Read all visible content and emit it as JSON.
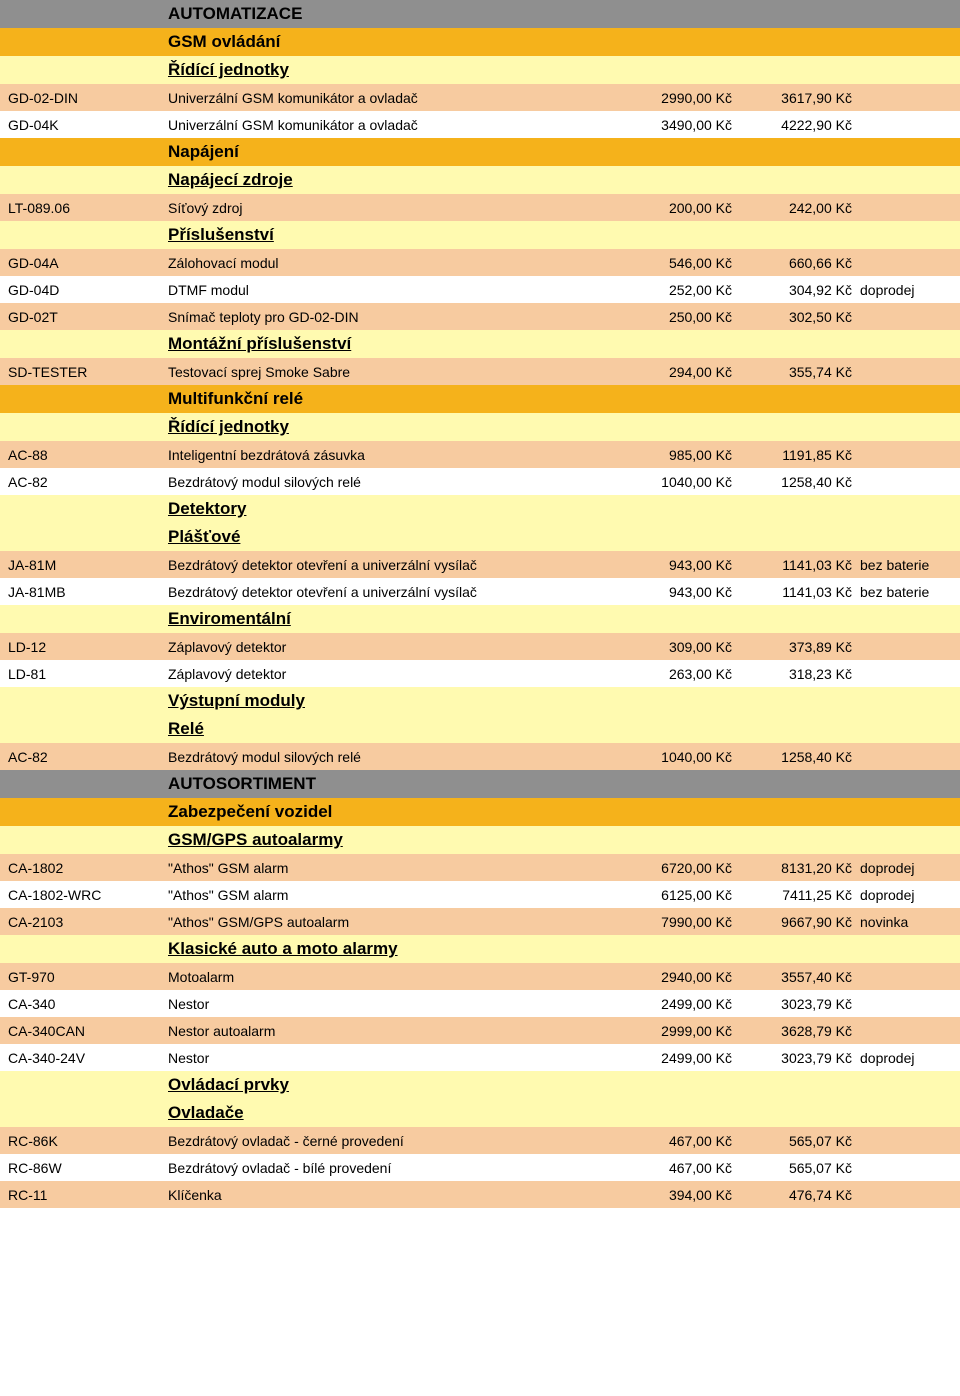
{
  "rows": [
    {
      "type": "section",
      "bg": "bg-grey",
      "label": "AUTOMATIZACE"
    },
    {
      "type": "group",
      "bg": "bg-orange",
      "label": "GSM ovládání"
    },
    {
      "type": "sub",
      "bg": "bg-lyellow",
      "label": "Řídící jednotky"
    },
    {
      "type": "item",
      "bg": "bg-peach",
      "code": "GD-02-DIN",
      "desc": "Univerzální GSM komunikátor a ovladač",
      "p1": "2990,00 Kč",
      "p2": "3617,90 Kč",
      "note": ""
    },
    {
      "type": "item",
      "bg": "",
      "code": "GD-04K",
      "desc": "Univerzální GSM komunikátor a ovladač",
      "p1": "3490,00 Kč",
      "p2": "4222,90 Kč",
      "note": ""
    },
    {
      "type": "group",
      "bg": "bg-orange",
      "label": "Napájení"
    },
    {
      "type": "sub",
      "bg": "bg-lyellow",
      "label": "Napájecí zdroje"
    },
    {
      "type": "item",
      "bg": "bg-peach",
      "code": "LT-089.06",
      "desc": "Síťový zdroj",
      "p1": "200,00 Kč",
      "p2": "242,00 Kč",
      "note": ""
    },
    {
      "type": "sub",
      "bg": "bg-lyellow",
      "label": "Příslušenství"
    },
    {
      "type": "item",
      "bg": "bg-peach",
      "code": "GD-04A",
      "desc": "Zálohovací modul",
      "p1": "546,00 Kč",
      "p2": "660,66 Kč",
      "note": ""
    },
    {
      "type": "item",
      "bg": "",
      "code": "GD-04D",
      "desc": "DTMF modul",
      "p1": "252,00 Kč",
      "p2": "304,92 Kč",
      "note": "doprodej"
    },
    {
      "type": "item",
      "bg": "bg-peach",
      "code": "GD-02T",
      "desc": "Snímač teploty pro GD-02-DIN",
      "p1": "250,00 Kč",
      "p2": "302,50 Kč",
      "note": ""
    },
    {
      "type": "sub",
      "bg": "bg-lyellow",
      "label": "Montážní příslušenství"
    },
    {
      "type": "item",
      "bg": "bg-peach",
      "code": "SD-TESTER",
      "desc": "Testovací sprej Smoke Sabre",
      "p1": "294,00 Kč",
      "p2": "355,74 Kč",
      "note": ""
    },
    {
      "type": "group",
      "bg": "bg-orange",
      "label": "Multifunkční relé"
    },
    {
      "type": "sub",
      "bg": "bg-lyellow",
      "label": "Řídící jednotky"
    },
    {
      "type": "item",
      "bg": "bg-peach",
      "code": "AC-88",
      "desc": "Inteligentní bezdrátová zásuvka",
      "p1": "985,00 Kč",
      "p2": "1191,85 Kč",
      "note": ""
    },
    {
      "type": "item",
      "bg": "",
      "code": "AC-82",
      "desc": "Bezdrátový modul silových relé",
      "p1": "1040,00 Kč",
      "p2": "1258,40 Kč",
      "note": ""
    },
    {
      "type": "sub",
      "bg": "bg-lyellow",
      "label": "Detektory"
    },
    {
      "type": "sub",
      "bg": "bg-lyellow",
      "label": "Plášťové"
    },
    {
      "type": "item",
      "bg": "bg-peach",
      "code": "JA-81M",
      "desc": "Bezdrátový detektor otevření a univerzální vysílač",
      "p1": "943,00 Kč",
      "p2": "1141,03 Kč",
      "note": "bez baterie"
    },
    {
      "type": "item",
      "bg": "",
      "code": "JA-81MB",
      "desc": "Bezdrátový detektor otevření a univerzální vysílač",
      "p1": "943,00 Kč",
      "p2": "1141,03 Kč",
      "note": "bez baterie"
    },
    {
      "type": "sub",
      "bg": "bg-lyellow",
      "label": "Enviromentální"
    },
    {
      "type": "item",
      "bg": "bg-peach",
      "code": "LD-12",
      "desc": "Záplavový detektor",
      "p1": "309,00 Kč",
      "p2": "373,89 Kč",
      "note": ""
    },
    {
      "type": "item",
      "bg": "",
      "code": "LD-81",
      "desc": "Záplavový detektor",
      "p1": "263,00 Kč",
      "p2": "318,23 Kč",
      "note": ""
    },
    {
      "type": "sub",
      "bg": "bg-lyellow",
      "label": "Výstupní moduly"
    },
    {
      "type": "sub",
      "bg": "bg-lyellow",
      "label": "Relé"
    },
    {
      "type": "item",
      "bg": "bg-peach",
      "code": "AC-82",
      "desc": "Bezdrátový modul silových relé",
      "p1": "1040,00 Kč",
      "p2": "1258,40 Kč",
      "note": ""
    },
    {
      "type": "section",
      "bg": "bg-grey",
      "label": "AUTOSORTIMENT"
    },
    {
      "type": "group",
      "bg": "bg-orange",
      "label": "Zabezpečení vozidel"
    },
    {
      "type": "sub",
      "bg": "bg-lyellow",
      "label": "GSM/GPS autoalarmy"
    },
    {
      "type": "item",
      "bg": "bg-peach",
      "code": "CA-1802",
      "desc": "\"Athos\" GSM alarm",
      "p1": "6720,00 Kč",
      "p2": "8131,20 Kč",
      "note": "doprodej"
    },
    {
      "type": "item",
      "bg": "",
      "code": "CA-1802-WRC",
      "desc": "\"Athos\" GSM alarm",
      "p1": "6125,00 Kč",
      "p2": "7411,25 Kč",
      "note": "doprodej"
    },
    {
      "type": "item",
      "bg": "bg-peach",
      "code": "CA-2103",
      "desc": "\"Athos\" GSM/GPS autoalarm",
      "p1": "7990,00 Kč",
      "p2": "9667,90 Kč",
      "note": "novinka"
    },
    {
      "type": "sub",
      "bg": "bg-lyellow",
      "label": "Klasické auto a moto alarmy"
    },
    {
      "type": "item",
      "bg": "bg-peach",
      "code": "GT-970",
      "desc": "Motoalarm",
      "p1": "2940,00 Kč",
      "p2": "3557,40 Kč",
      "note": ""
    },
    {
      "type": "item",
      "bg": "",
      "code": "CA-340",
      "desc": "Nestor",
      "p1": "2499,00 Kč",
      "p2": "3023,79 Kč",
      "note": ""
    },
    {
      "type": "item",
      "bg": "bg-peach",
      "code": "CA-340CAN",
      "desc": "Nestor autoalarm",
      "p1": "2999,00 Kč",
      "p2": "3628,79 Kč",
      "note": ""
    },
    {
      "type": "item",
      "bg": "",
      "code": "CA-340-24V",
      "desc": "Nestor",
      "p1": "2499,00 Kč",
      "p2": "3023,79 Kč",
      "note": "doprodej"
    },
    {
      "type": "sub",
      "bg": "bg-lyellow",
      "label": "Ovládací prvky"
    },
    {
      "type": "sub",
      "bg": "bg-lyellow",
      "label": "Ovladače"
    },
    {
      "type": "item",
      "bg": "bg-peach",
      "code": "RC-86K",
      "desc": "Bezdrátový ovladač - černé provedení",
      "p1": "467,00 Kč",
      "p2": "565,07 Kč",
      "note": ""
    },
    {
      "type": "item",
      "bg": "",
      "code": "RC-86W",
      "desc": "Bezdrátový ovladač - bílé provedení",
      "p1": "467,00 Kč",
      "p2": "565,07 Kč",
      "note": ""
    },
    {
      "type": "item",
      "bg": "bg-peach",
      "code": "RC-11",
      "desc": "Klíčenka",
      "p1": "394,00 Kč",
      "p2": "476,74 Kč",
      "note": ""
    }
  ]
}
